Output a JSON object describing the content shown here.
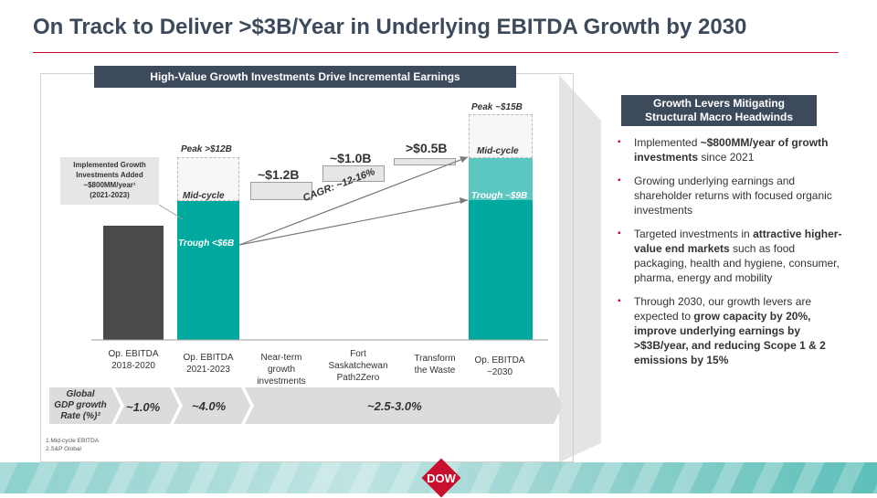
{
  "title": "On Track to Deliver >$3B/Year in Underlying EBITDA Growth by 2030",
  "banner": "High-Value Growth Investments Drive Incremental Earnings",
  "implemented_box": {
    "line1": "Implemented Growth",
    "line2": "Investments Added",
    "line3": "~$800MM/year¹",
    "line4": "(2021-2023)"
  },
  "bar_labels": {
    "peak_12": "Peak >$12B",
    "midcycle_1": "Mid-cycle",
    "trough_6": "Trough <$6B",
    "val_1_2": "~$1.2B",
    "val_1_0": "~$1.0B",
    "val_0_5": ">$0.5B",
    "cagr": "CAGR: ~12-16%",
    "peak_15": "Peak ~$15B",
    "midcycle_2": "Mid-cycle",
    "trough_9": "Trough ~$9B"
  },
  "chart_data": {
    "type": "bar",
    "title": "High-Value Growth Investments Drive Incremental Earnings",
    "categories": [
      "Op. EBITDA 2018-2020",
      "Op. EBITDA 2021-2023",
      "Near-term growth investments",
      "Fort Saskatchewan Path2Zero",
      "Transform the Waste",
      "Op. EBITDA ~2030"
    ],
    "annotations": {
      "op_2021_2023": {
        "peak": ">12",
        "midcycle_unit": "B",
        "trough": "<6"
      },
      "increments": {
        "near_term": 1.2,
        "fort_saskatchewan": 1.0,
        "transform_waste": 0.5
      },
      "op_2030": {
        "peak": 15,
        "trough": 9
      },
      "cagr": "~12-16%"
    }
  },
  "x_labels": [
    [
      "Op. EBITDA",
      "2018-2020"
    ],
    [
      "Op. EBITDA",
      "2021-2023"
    ],
    [
      "Near-term",
      "growth",
      "investments"
    ],
    [
      "Fort",
      "Saskatchewan",
      "Path2Zero"
    ],
    [
      "Transform",
      "the Waste"
    ],
    [
      "Op. EBITDA",
      "~2030"
    ]
  ],
  "gdp": {
    "label_line1": "Global",
    "label_line2": "GDP growth",
    "label_line3": "Rate (%)²",
    "v1": "~1.0%",
    "v2": "~4.0%",
    "v3": "~2.5-3.0%"
  },
  "footnotes": {
    "f1": "1.Mid-cycle EBITDA",
    "f2": "2.S&P Global"
  },
  "right_panel": {
    "header_line1": "Growth Levers Mitigating",
    "header_line2": "Structural Macro Headwinds",
    "bullets": [
      {
        "pre": "Implemented ",
        "bold": "~$800MM/year of growth investments",
        "post": " since 2021"
      },
      {
        "pre": "Growing underlying earnings and shareholder returns with focused organic investments",
        "bold": "",
        "post": ""
      },
      {
        "pre": "Targeted investments in ",
        "bold": "attractive higher-value end markets",
        "post": " such as food packaging, health and hygiene, consumer, pharma, energy and mobility"
      },
      {
        "pre": "Through 2030, our growth levers are expected to ",
        "bold": "grow capacity by 20%, improve underlying earnings by >$3B/year, and reducing Scope 1 & 2 emissions by 15%",
        "post": ""
      }
    ]
  },
  "logo": "DOW",
  "colors": {
    "navy": "#3d4a5c",
    "teal": "#00a99d",
    "red": "#c8102e"
  }
}
